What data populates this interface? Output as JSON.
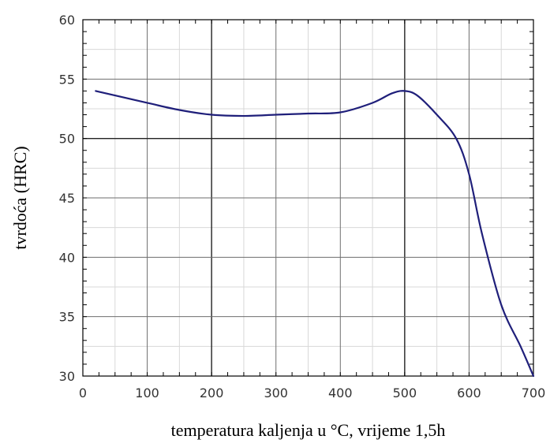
{
  "chart_data": {
    "type": "line",
    "xlabel": "temperatura kaljenja u °C, vrijeme 1,5h",
    "ylabel": "tvrdoća (HRC)",
    "xlim": [
      0,
      700
    ],
    "ylim": [
      30,
      60
    ],
    "x_ticks": [
      0,
      100,
      200,
      300,
      400,
      500,
      600,
      700
    ],
    "y_ticks": [
      30,
      35,
      40,
      45,
      50,
      55,
      60
    ],
    "x_tick_labels": [
      "0",
      "100",
      "200",
      "300",
      "400",
      "500",
      "600",
      "700"
    ],
    "y_tick_labels": [
      "30",
      "35",
      "40",
      "45",
      "50",
      "55",
      "60"
    ],
    "grid": true,
    "line_color": "#1f1f7a",
    "series": [
      {
        "x": [
          20,
          100,
          150,
          200,
          250,
          300,
          350,
          400,
          450,
          480,
          500,
          520,
          550,
          580,
          600,
          620,
          650,
          680,
          700
        ],
        "y": [
          54,
          53,
          52.4,
          52,
          51.9,
          52,
          52.1,
          52.2,
          53,
          53.8,
          54,
          53.6,
          52,
          50,
          47,
          42,
          36,
          32.5,
          30
        ]
      }
    ]
  }
}
